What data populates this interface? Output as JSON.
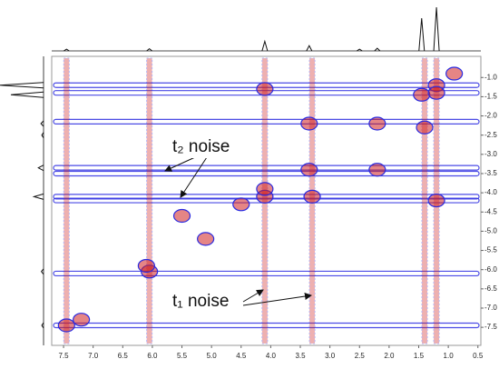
{
  "chart_data": {
    "type": "contour2d",
    "xlim": [
      7.7,
      0.45
    ],
    "ylim": [
      -7.97,
      -0.45
    ],
    "xticks": [
      7.5,
      {
        "value": 7,
        "label": "7.0"
      },
      6.5,
      {
        "value": 6,
        "label": "6.0"
      },
      5.5,
      {
        "value": 5,
        "label": "5.0"
      },
      4.5,
      {
        "value": 4,
        "label": "4.0"
      },
      3.5,
      {
        "value": 3,
        "label": "3.0"
      },
      2.5,
      {
        "value": 2,
        "label": "2.0"
      },
      1.5,
      {
        "value": 1,
        "label": "1.0"
      },
      0.5
    ],
    "yticks": [
      {
        "value": -1,
        "label": "-1.0"
      },
      -1.5,
      {
        "value": -2,
        "label": "-2.0"
      },
      -2.5,
      {
        "value": -3,
        "label": "-3.0"
      },
      -3.5,
      {
        "value": -4,
        "label": "-4.0"
      },
      -4.5,
      {
        "value": -5,
        "label": "-5.0"
      },
      -5.5,
      {
        "value": -6,
        "label": "-6.0"
      },
      -6.5,
      {
        "value": -7,
        "label": "-7.0"
      },
      -7.5
    ],
    "streak_color": "#2b2be0",
    "peak_color": "#d02020",
    "vertical_streaks": [
      7.45,
      6.05,
      4.1,
      3.3,
      1.4,
      1.2
    ],
    "horizontal_streaks": [
      -1.2,
      -1.4,
      -2.15,
      -3.35,
      -3.5,
      -4.1,
      -4.2,
      -6.1,
      -7.45
    ],
    "peaks": {
      "x": [
        7.45,
        7.2,
        6.05,
        4.1,
        4.1,
        3.35,
        2.2,
        1.45,
        1.2,
        1.2,
        0.9,
        4.1,
        1.2,
        3.35,
        2.2,
        1.4,
        3.3,
        4.5,
        5.5,
        5.1,
        6.1
      ],
      "y": [
        -7.45,
        -7.3,
        -6.05,
        -4.1,
        -1.3,
        -3.4,
        -2.2,
        -1.45,
        -1.2,
        -4.2,
        -0.9,
        -3.9,
        -1.4,
        -2.2,
        -3.4,
        -2.3,
        -4.1,
        -4.3,
        -4.6,
        -5.2,
        -5.9
      ]
    },
    "projection": {
      "x": [
        7.45,
        6.05,
        4.1,
        3.35,
        2.5,
        2.2,
        1.45,
        1.2
      ],
      "values": [
        0.04,
        0.05,
        0.22,
        0.12,
        0.04,
        0.06,
        0.75,
        1.0
      ]
    },
    "annotations": [
      "t₂ noise",
      "t₁ noise"
    ]
  }
}
